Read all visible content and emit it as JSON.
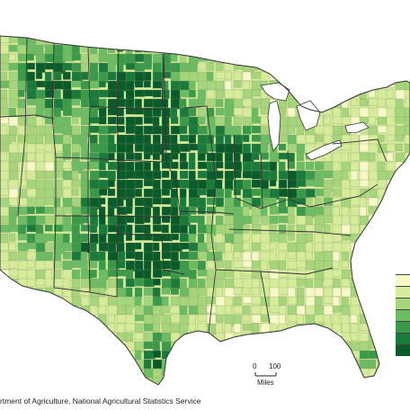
{
  "map": {
    "source_credit": "rtment of Agriculture, National Agricultural Statistics Service",
    "scale_bar": {
      "zero_label": "0",
      "max_label": "100",
      "unit_label": "Miles"
    },
    "legend": {
      "colors": [
        "#f7f8c8",
        "#d6ec9b",
        "#a6d57c",
        "#6dbb62",
        "#3a9a4a",
        "#1a7a3a",
        "#0a5a2a"
      ]
    },
    "colors": {
      "lowest": "#f7f8c8",
      "low": "#d6ec9b",
      "mid_low": "#a6d57c",
      "mid": "#6dbb62",
      "mid_high": "#3a9a4a",
      "high": "#1a7a3a",
      "highest": "#0a5a2a",
      "county_border": "#8a9a70",
      "state_border": "#333333",
      "background": "#ffffff"
    }
  }
}
